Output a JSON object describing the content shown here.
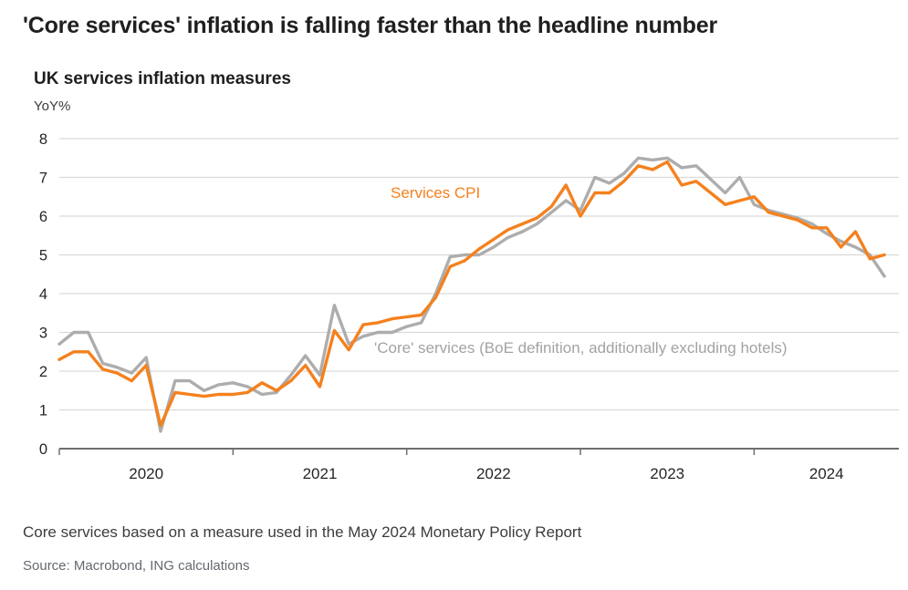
{
  "page": {
    "headline": "'Core services' inflation is falling faster than the headline number",
    "footnote": "Core services based on a measure used in the May 2024 Monetary Policy Report",
    "source": "Source: Macrobond, ING calculations"
  },
  "chart_data": {
    "type": "line",
    "title": "UK services inflation measures",
    "subtitle": "YoY%",
    "ylabel": "YoY%",
    "ylim": [
      0,
      8
    ],
    "yticks": [
      0,
      1,
      2,
      3,
      4,
      5,
      6,
      7,
      8
    ],
    "xticklabels": [
      "2020",
      "2021",
      "2022",
      "2023",
      "2024"
    ],
    "grid": true,
    "legend": "inline-labels",
    "grid_color": "#d9d9d9",
    "axis_color": "#6e6e6e",
    "tick_label_color": "#262626",
    "x": [
      "2020-01",
      "2020-02",
      "2020-03",
      "2020-04",
      "2020-05",
      "2020-06",
      "2020-07",
      "2020-08",
      "2020-09",
      "2020-10",
      "2020-11",
      "2020-12",
      "2021-01",
      "2021-02",
      "2021-03",
      "2021-04",
      "2021-05",
      "2021-06",
      "2021-07",
      "2021-08",
      "2021-09",
      "2021-10",
      "2021-11",
      "2021-12",
      "2022-01",
      "2022-02",
      "2022-03",
      "2022-04",
      "2022-05",
      "2022-06",
      "2022-07",
      "2022-08",
      "2022-09",
      "2022-10",
      "2022-11",
      "2022-12",
      "2023-01",
      "2023-02",
      "2023-03",
      "2023-04",
      "2023-05",
      "2023-06",
      "2023-07",
      "2023-08",
      "2023-09",
      "2023-10",
      "2023-11",
      "2023-12",
      "2024-01",
      "2024-02",
      "2024-03",
      "2024-04",
      "2024-05",
      "2024-06",
      "2024-07",
      "2024-08",
      "2024-09",
      "2024-10"
    ],
    "series": [
      {
        "name": "Services CPI",
        "color": "#f4811e",
        "values": [
          2.3,
          2.5,
          2.5,
          2.05,
          1.95,
          1.75,
          2.15,
          0.6,
          1.45,
          1.4,
          1.35,
          1.4,
          1.4,
          1.45,
          1.7,
          1.5,
          1.75,
          2.15,
          1.6,
          3.05,
          2.55,
          3.2,
          3.25,
          3.35,
          3.4,
          3.45,
          3.9,
          4.7,
          4.85,
          5.15,
          5.4,
          5.65,
          5.8,
          5.95,
          6.25,
          6.8,
          6.0,
          6.6,
          6.6,
          6.9,
          7.3,
          7.2,
          7.4,
          6.8,
          6.9,
          6.6,
          6.3,
          6.4,
          6.5,
          6.1,
          6.0,
          5.9,
          5.7,
          5.7,
          5.2,
          5.6,
          4.9,
          5.0
        ]
      },
      {
        "name": "'Core' services (BoE definition, additionally excluding hotels)",
        "color": "#adadad",
        "label_color": "#a3a3a3",
        "values": [
          2.7,
          3.0,
          3.0,
          2.2,
          2.1,
          1.95,
          2.35,
          0.45,
          1.75,
          1.75,
          1.5,
          1.65,
          1.7,
          1.6,
          1.4,
          1.45,
          1.9,
          2.4,
          1.9,
          3.7,
          2.7,
          2.9,
          3.0,
          3.0,
          3.15,
          3.25,
          4.0,
          4.95,
          5.0,
          5.0,
          5.2,
          5.45,
          5.6,
          5.8,
          6.1,
          6.4,
          6.15,
          7.0,
          6.85,
          7.1,
          7.5,
          7.45,
          7.5,
          7.25,
          7.3,
          6.95,
          6.6,
          7.0,
          6.3,
          6.15,
          6.05,
          5.95,
          5.8,
          5.55,
          5.35,
          5.2,
          5.0,
          4.45
        ]
      }
    ]
  }
}
